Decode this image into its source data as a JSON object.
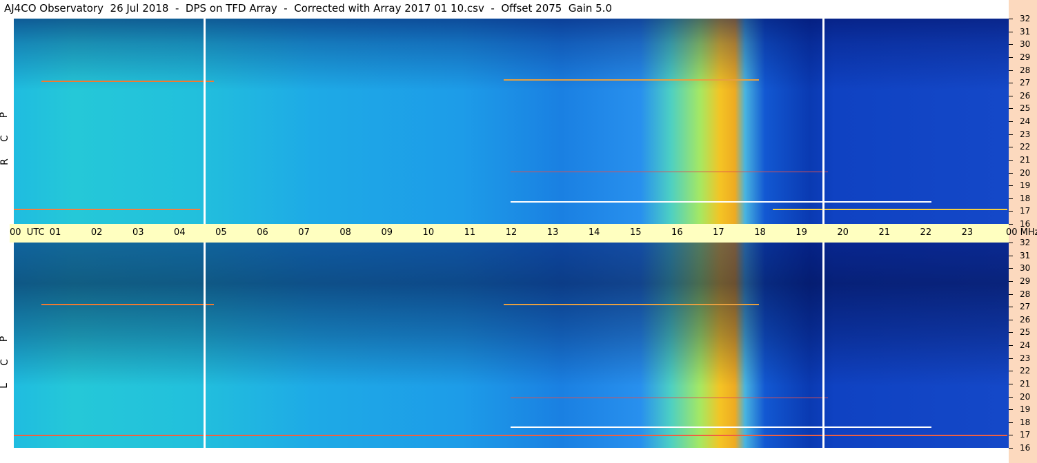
{
  "header": {
    "title": "AJ4CO Observatory  26 Jul 2018  -  DPS on TFD Array  -  Corrected with Array 2017 01 10.csv  -  Offset 2075  Gain 5.0"
  },
  "time_axis": {
    "labels": [
      "00  UTC",
      "01",
      "02",
      "03",
      "04",
      "05",
      "06",
      "07",
      "08",
      "09",
      "10",
      "11",
      "12",
      "13",
      "14",
      "15",
      "16",
      "17",
      "18",
      "19",
      "20",
      "21",
      "22",
      "23",
      "00 MHz"
    ]
  },
  "panels": [
    {
      "letters": [
        "R",
        "C",
        "P"
      ],
      "freq_labels": [
        "32",
        "31",
        "30",
        "29",
        "28",
        "27",
        "26",
        "25",
        "24",
        "23",
        "22",
        "21",
        "20",
        "19",
        "18",
        "17",
        "16"
      ]
    },
    {
      "letters": [
        "L",
        "C",
        "P"
      ],
      "freq_labels": [
        "32",
        "31",
        "30",
        "29",
        "28",
        "27",
        "26",
        "25",
        "24",
        "23",
        "22",
        "21",
        "20",
        "19",
        "18",
        "17",
        "16"
      ]
    }
  ]
}
